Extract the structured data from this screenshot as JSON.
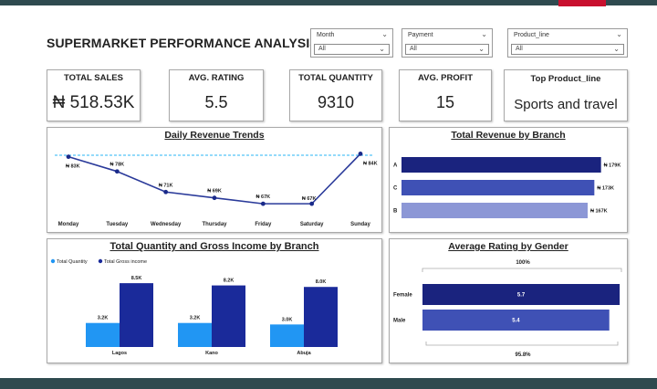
{
  "header": {
    "title": "SUPERMARKET PERFORMANCE ANALYSIS"
  },
  "filters": [
    {
      "label": "Month",
      "value": "All"
    },
    {
      "label": "Payment",
      "value": "All"
    },
    {
      "label": "Product_line",
      "value": "All"
    }
  ],
  "kpis": {
    "total_sales": {
      "label": "TOTAL SALES",
      "value": "₦ 518.53K"
    },
    "avg_rating": {
      "label": "AVG. RATING",
      "value": "5.5"
    },
    "total_quantity": {
      "label": "TOTAL QUANTITY",
      "value": "9310"
    },
    "avg_profit": {
      "label": "AVG. PROFIT",
      "value": "15"
    },
    "top_product": {
      "label": "Top Product_line",
      "value": "Sports and travel"
    }
  },
  "colors": {
    "dark_blue": "#1a237e",
    "mid_blue": "#3f51b5",
    "light_blue": "#8c97d6",
    "sky_blue": "#2196f3",
    "navy": "#1a2a9a",
    "header_bar": "#2f4a4f",
    "accent_red": "#c8102e"
  },
  "chart_data": [
    {
      "type": "line",
      "title": "Daily Revenue Trends",
      "categories": [
        "Monday",
        "Tuesday",
        "Wednesday",
        "Thursday",
        "Friday",
        "Saturday",
        "Sunday"
      ],
      "values": [
        83,
        78,
        71,
        69,
        67,
        67,
        84
      ],
      "data_labels": [
        "₦ 83K",
        "₦ 78K",
        "₦ 71K",
        "₦ 69K",
        "₦ 67K",
        "₦ 67K",
        "₦ 84K"
      ],
      "reference_line": 83.5,
      "ylim": [
        63,
        86
      ]
    },
    {
      "type": "bar",
      "orientation": "horizontal",
      "title": "Total Revenue by Branch",
      "categories": [
        "A",
        "C",
        "B"
      ],
      "values": [
        179,
        173,
        167
      ],
      "data_labels": [
        "₦ 179K",
        "₦ 173K",
        "₦ 167K"
      ],
      "xlim": [
        0,
        185
      ]
    },
    {
      "type": "bar",
      "title": "Total Quantity and Gross Income by Branch",
      "categories": [
        "Lagos",
        "Kano",
        "Abuja"
      ],
      "legend": [
        "Total Quantity",
        "Total Gross income"
      ],
      "series": [
        {
          "name": "Total Quantity",
          "values": [
            3.2,
            3.2,
            3.0
          ],
          "data_labels": [
            "3.2K",
            "3.2K",
            "3.0K"
          ]
        },
        {
          "name": "Total Gross income",
          "values": [
            8.5,
            8.2,
            8.0
          ],
          "data_labels": [
            "8.5K",
            "8.2K",
            "8.0K"
          ]
        }
      ],
      "ylim": [
        0,
        9
      ]
    },
    {
      "type": "bar",
      "orientation": "horizontal",
      "title": "Average Rating by Gender",
      "categories": [
        "Female",
        "Male"
      ],
      "values": [
        5.7,
        5.4
      ],
      "data_labels": [
        "5.7",
        "5.4"
      ],
      "scale_max_label": "100%",
      "scale_min_label": "95.8%",
      "xlim": [
        0,
        5.75
      ]
    }
  ]
}
